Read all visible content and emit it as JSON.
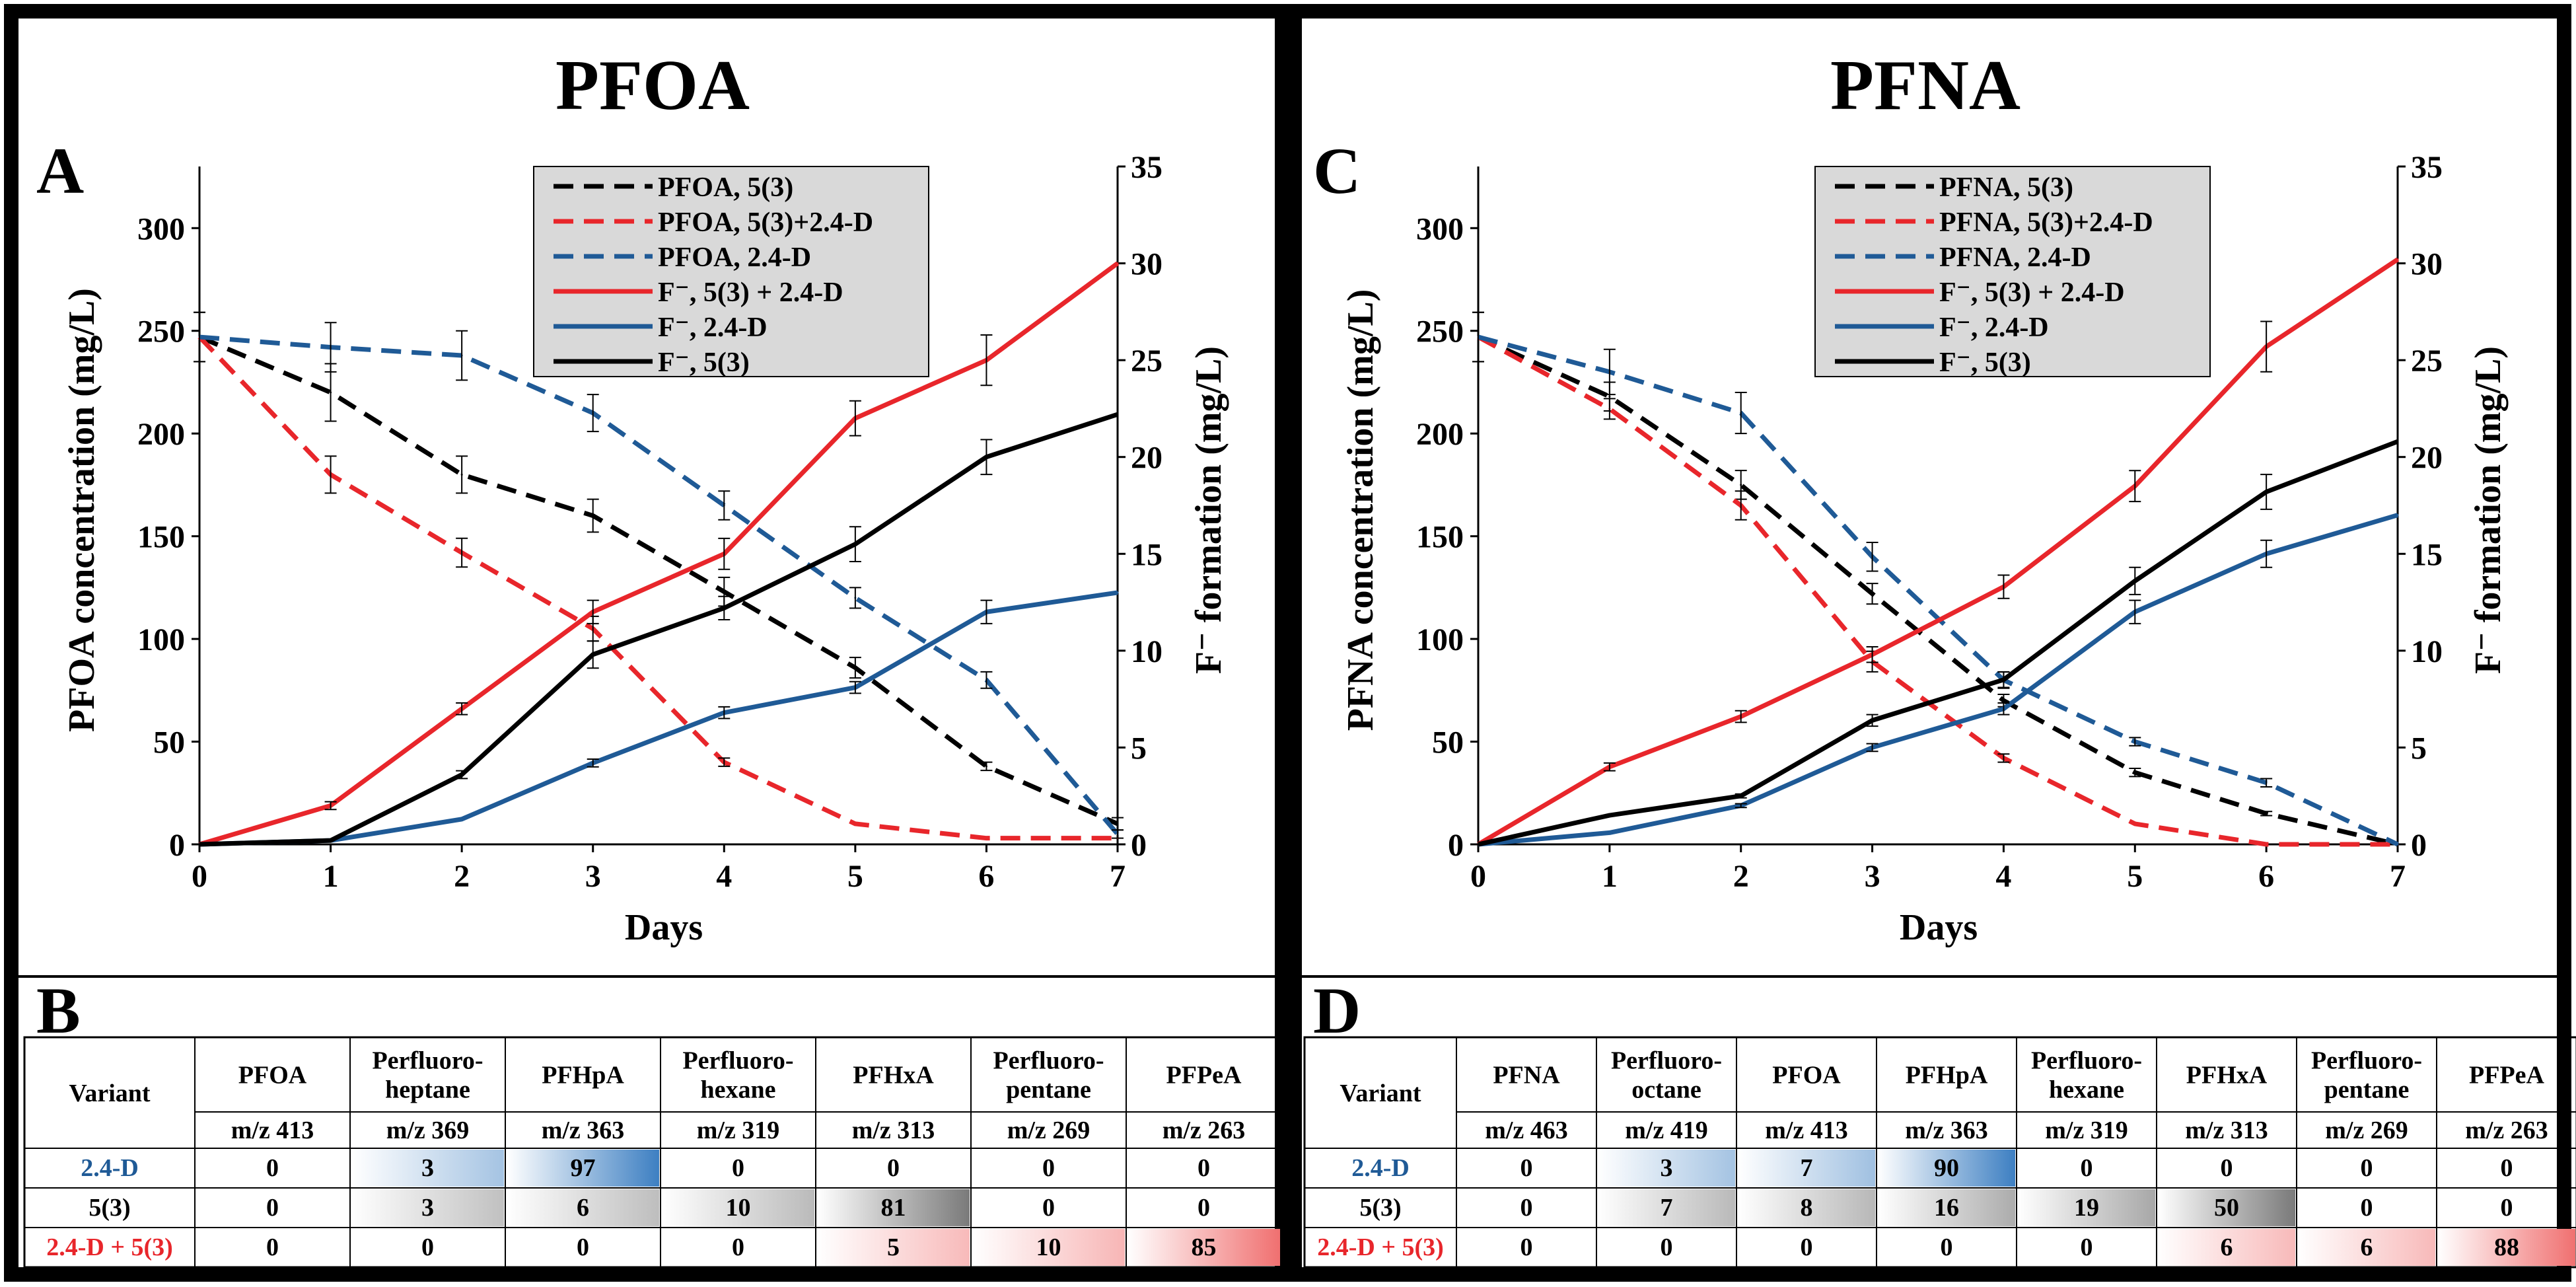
{
  "charts": [
    {
      "panel_letter": "A",
      "title": "PFOA",
      "ylabel": "PFOA concentration (mg/L)",
      "y2label": "F⁻ formation (mg/L)",
      "xlabel": "Days",
      "legend": [
        {
          "label": "PFOA, 5(3)",
          "color": "#000000",
          "dash": true
        },
        {
          "label": "PFOA, 5(3)+2.4-D",
          "color": "#e8262b",
          "dash": true
        },
        {
          "label": "PFOA, 2.4-D",
          "color": "#1f5a96",
          "dash": true
        },
        {
          "label": "F⁻, 5(3) + 2.4-D",
          "color": "#e8262b",
          "dash": false
        },
        {
          "label": "F⁻, 2.4-D",
          "color": "#1f5a96",
          "dash": false
        },
        {
          "label": "F⁻, 5(3)",
          "color": "#000000",
          "dash": false
        }
      ]
    },
    {
      "panel_letter": "C",
      "title": "PFNA",
      "ylabel": "PFNA concentration (mg/L)",
      "y2label": "F⁻ formation (mg/L)",
      "xlabel": "Days",
      "legend": [
        {
          "label": "PFNA, 5(3)",
          "color": "#000000",
          "dash": true
        },
        {
          "label": "PFNA, 5(3)+2.4-D",
          "color": "#e8262b",
          "dash": true
        },
        {
          "label": "PFNA, 2.4-D",
          "color": "#1f5a96",
          "dash": true
        },
        {
          "label": "F⁻, 5(3) + 2.4-D",
          "color": "#e8262b",
          "dash": false
        },
        {
          "label": "F⁻, 2.4-D",
          "color": "#1f5a96",
          "dash": false
        },
        {
          "label": "F⁻, 5(3)",
          "color": "#000000",
          "dash": false
        }
      ]
    }
  ],
  "chart_data": [
    {
      "type": "line",
      "title": "PFOA",
      "xlabel": "Days",
      "ylabel": "PFOA concentration (mg/L)",
      "y2label": "F⁻ formation (mg/L)",
      "x": [
        0,
        1,
        2,
        3,
        4,
        5,
        6,
        7
      ],
      "xlim": [
        0,
        7
      ],
      "ylim": [
        0,
        330
      ],
      "yticks": [
        0,
        50,
        100,
        150,
        200,
        250,
        300
      ],
      "y2lim": [
        0,
        35
      ],
      "y2ticks": [
        0,
        5,
        10,
        15,
        20,
        25,
        30,
        35
      ],
      "series": [
        {
          "name": "PFOA, 5(3)",
          "axis": "left",
          "color": "#000000",
          "dash": true,
          "values": [
            247,
            220,
            180,
            160,
            123,
            86,
            38,
            10
          ],
          "errors": [
            12,
            14,
            9,
            8,
            7,
            5,
            2,
            3
          ]
        },
        {
          "name": "PFOA, 5(3)+2.4-D",
          "axis": "left",
          "color": "#e8262b",
          "dash": true,
          "values": [
            247,
            180,
            142,
            105,
            40,
            10,
            3,
            3
          ],
          "errors": [
            0,
            9,
            7,
            6,
            2,
            0,
            0,
            0
          ]
        },
        {
          "name": "PFOA, 2.4-D",
          "axis": "left",
          "color": "#1f5a96",
          "dash": true,
          "values": [
            247,
            242,
            238,
            210,
            165,
            120,
            80,
            5
          ],
          "errors": [
            12,
            12,
            12,
            9,
            7,
            5,
            4,
            2
          ]
        },
        {
          "name": "F⁻, 5(3) + 2.4-D",
          "axis": "right",
          "color": "#e8262b",
          "dash": false,
          "values": [
            0,
            2,
            7,
            12,
            15,
            22,
            25,
            30
          ],
          "errors": [
            0,
            0.2,
            0.3,
            0.6,
            0.8,
            0.9,
            1.3,
            0
          ]
        },
        {
          "name": "F⁻, 2.4-D",
          "axis": "right",
          "color": "#1f5a96",
          "dash": false,
          "values": [
            0,
            0.2,
            1.3,
            4.2,
            6.8,
            8.1,
            12,
            13
          ],
          "errors": [
            0,
            0,
            0,
            0.2,
            0.3,
            0.3,
            0.6,
            0
          ]
        },
        {
          "name": "F⁻, 5(3)",
          "axis": "right",
          "color": "#000000",
          "dash": false,
          "values": [
            0,
            0.2,
            3.6,
            9.8,
            12.2,
            15.5,
            20,
            22.2
          ],
          "errors": [
            0,
            0,
            0.2,
            0.7,
            0.6,
            0.9,
            0.9,
            0
          ]
        }
      ]
    },
    {
      "type": "line",
      "title": "PFNA",
      "xlabel": "Days",
      "ylabel": "PFNA concentration (mg/L)",
      "y2label": "F⁻ formation (mg/L)",
      "x": [
        0,
        1,
        2,
        3,
        4,
        5,
        6,
        7
      ],
      "xlim": [
        0,
        7
      ],
      "ylim": [
        0,
        330
      ],
      "yticks": [
        0,
        50,
        100,
        150,
        200,
        250,
        300
      ],
      "y2lim": [
        0,
        35
      ],
      "y2ticks": [
        0,
        5,
        10,
        15,
        20,
        25,
        30,
        35
      ],
      "series": [
        {
          "name": "PFNA, 5(3)",
          "axis": "left",
          "color": "#000000",
          "dash": true,
          "values": [
            247,
            218,
            175,
            122,
            70,
            35,
            15,
            0
          ],
          "errors": [
            12,
            7,
            7,
            5,
            3,
            2,
            1,
            0
          ]
        },
        {
          "name": "PFNA, 5(3)+2.4-D",
          "axis": "left",
          "color": "#e8262b",
          "dash": true,
          "values": [
            247,
            212,
            165,
            89,
            42,
            10,
            0,
            0
          ],
          "errors": [
            0,
            5,
            7,
            5,
            2,
            0,
            0,
            0
          ]
        },
        {
          "name": "PFNA, 2.4-D",
          "axis": "left",
          "color": "#1f5a96",
          "dash": true,
          "values": [
            247,
            230,
            210,
            140,
            80,
            50,
            30,
            0
          ],
          "errors": [
            12,
            11,
            10,
            7,
            4,
            2,
            2,
            0
          ]
        },
        {
          "name": "F⁻, 5(3) + 2.4-D",
          "axis": "right",
          "color": "#e8262b",
          "dash": false,
          "values": [
            0,
            4,
            6.6,
            9.8,
            13.3,
            18.5,
            25.7,
            30.2
          ],
          "errors": [
            0,
            0.2,
            0.3,
            0.4,
            0.6,
            0.8,
            1.3,
            0
          ]
        },
        {
          "name": "F⁻, 2.4-D",
          "axis": "right",
          "color": "#1f5a96",
          "dash": false,
          "values": [
            0,
            0.6,
            2,
            5,
            7,
            12,
            15,
            17
          ],
          "errors": [
            0,
            0,
            0.1,
            0.2,
            0.3,
            0.6,
            0.7,
            0
          ]
        },
        {
          "name": "F⁻, 5(3)",
          "axis": "right",
          "color": "#000000",
          "dash": false,
          "values": [
            0,
            1.5,
            2.5,
            6.4,
            8.5,
            13.6,
            18.2,
            20.8
          ],
          "errors": [
            0,
            0,
            0.1,
            0.3,
            0.4,
            0.7,
            0.9,
            0
          ]
        }
      ]
    },
    {
      "type": "table",
      "panel_letter": "B",
      "header_top": [
        "Variant",
        "PFOA",
        "Perfluoro-\nheptane",
        "PFHpA",
        "Perfluoro-\nhexane",
        "PFHxA",
        "Perfluoro-\npentane",
        "PFPeA"
      ],
      "header_mz": [
        "m/z 413",
        "m/z 369",
        "m/z 363",
        "m/z 319",
        "m/z 313",
        "m/z 269",
        "m/z 263"
      ],
      "rows": [
        {
          "variant": "2.4-D",
          "variant_color": "#1f5a96",
          "values": [
            "0",
            "3",
            "97",
            "0",
            "0",
            "0",
            "0"
          ],
          "scheme": "blue"
        },
        {
          "variant": "5(3)",
          "variant_color": "#000000",
          "values": [
            "0",
            "3",
            "6",
            "10",
            "81",
            "0",
            "0"
          ],
          "scheme": "gray"
        },
        {
          "variant": "2.4-D + 5(3)",
          "variant_color": "#e8262b",
          "values": [
            "0",
            "0",
            "0",
            "0",
            "5",
            "10",
            "85"
          ],
          "scheme": "red"
        }
      ]
    },
    {
      "type": "table",
      "panel_letter": "D",
      "header_top": [
        "Variant",
        "PFNA",
        "Perfluoro-\noctane",
        "PFOA",
        "PFHpA",
        "Perfluoro-\nhexane",
        "PFHxA",
        "Perfluoro-\npentane",
        "PFPeA"
      ],
      "header_mz": [
        "m/z 463",
        "m/z 419",
        "m/z 413",
        "m/z 363",
        "m/z 319",
        "m/z 313",
        "m/z 269",
        "m/z 263"
      ],
      "rows": [
        {
          "variant": "2.4-D",
          "variant_color": "#1f5a96",
          "values": [
            "0",
            "3",
            "7",
            "90",
            "0",
            "0",
            "0",
            "0"
          ],
          "scheme": "blue"
        },
        {
          "variant": "5(3)",
          "variant_color": "#000000",
          "values": [
            "0",
            "7",
            "8",
            "16",
            "19",
            "50",
            "0",
            "0"
          ],
          "scheme": "gray"
        },
        {
          "variant": "2.4-D + 5(3)",
          "variant_color": "#e8262b",
          "values": [
            "0",
            "0",
            "0",
            "0",
            "0",
            "6",
            "6",
            "88"
          ],
          "scheme": "red"
        }
      ]
    }
  ]
}
